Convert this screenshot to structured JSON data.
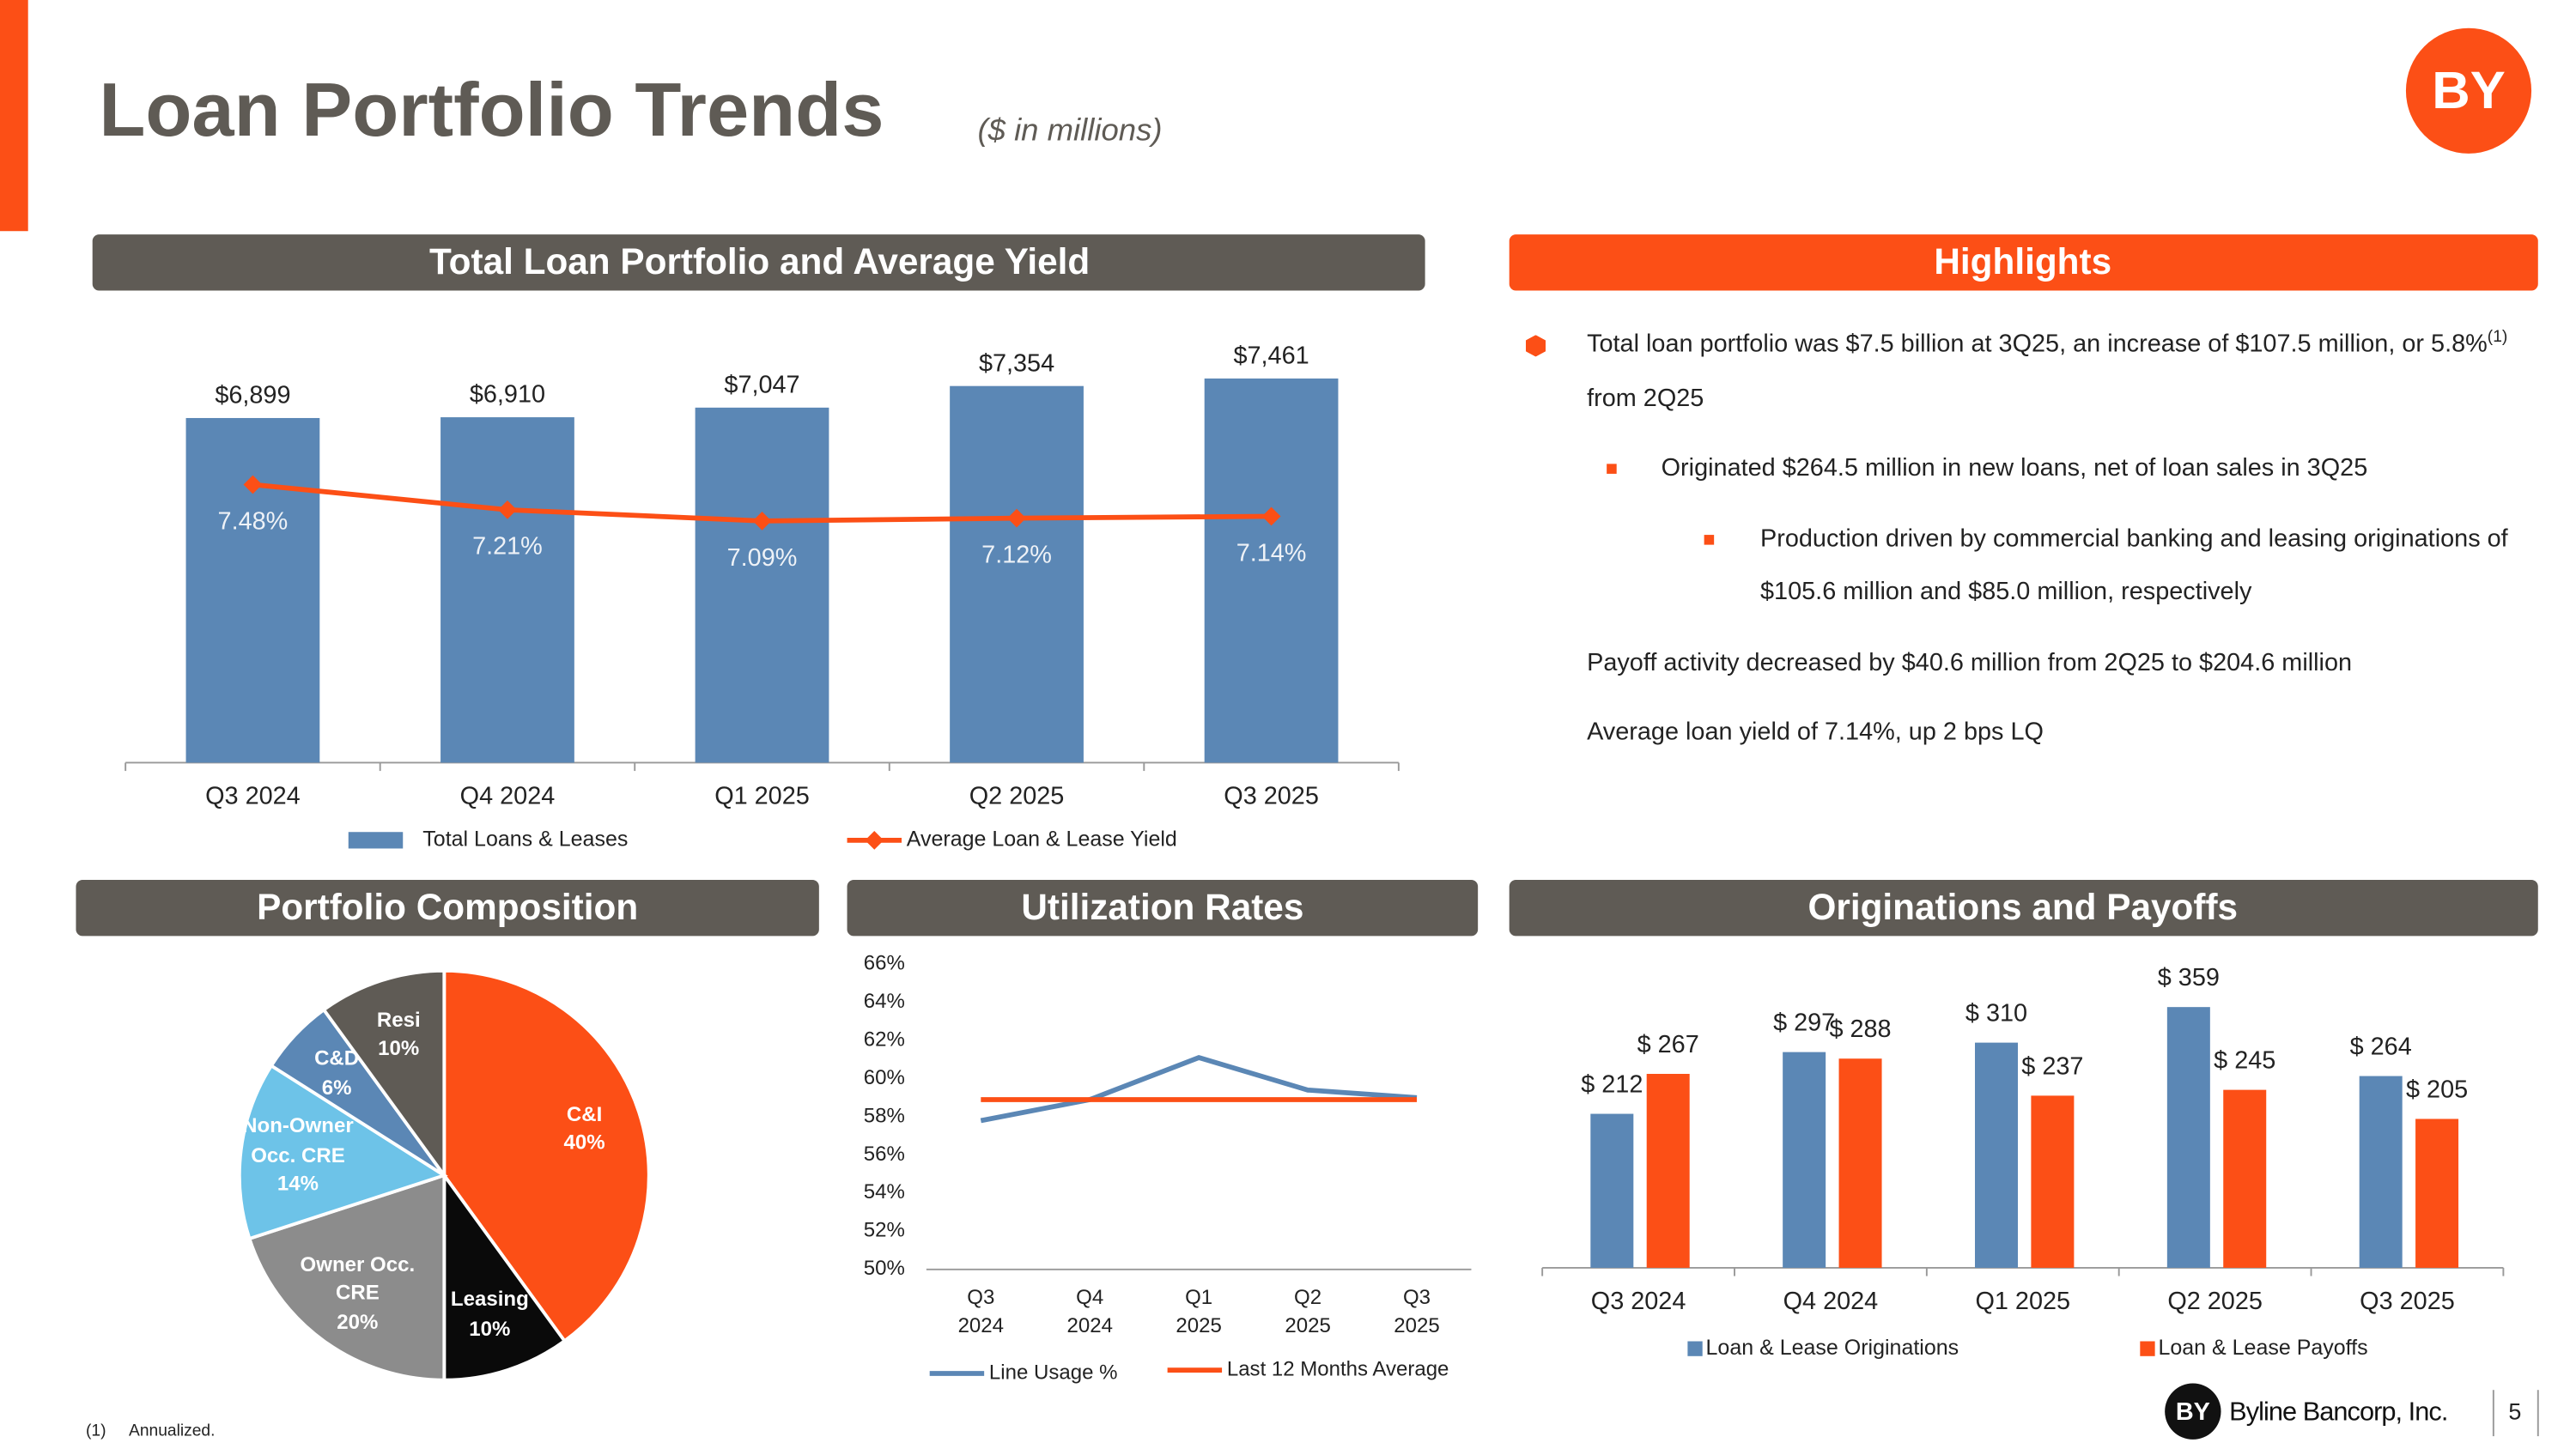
{
  "header": {
    "title": "Loan Portfolio Trends",
    "subtitle": "($ in millions)",
    "logo": "BY"
  },
  "highlights": {
    "title": "Highlights",
    "bullets": [
      {
        "text": "Total loan portfolio was $7.5 billion at 3Q25, an increase of $107.5 million, or 5.8%",
        "note": "(1)",
        "text_after": "from 2Q25",
        "bullets": [
          {
            "text": "Originated $264.5 million in new loans, net of loan sales in 3Q25",
            "bullets": [
              {
                "text": "Production driven by commercial banking and leasing originations of $105.6 million and $85.0 million, respectively"
              }
            ]
          }
        ]
      },
      {
        "text": "Payoff activity decreased by $40.6 million from 2Q25 to $204.6 million"
      },
      {
        "text": "Average loan yield of 7.14%, up 2 bps LQ"
      }
    ]
  },
  "chart_data": [
    {
      "type": "bar",
      "title": "Total Loan Portfolio and Average Yield",
      "categories": [
        "Q3 2024",
        "Q4 2024",
        "Q1 2025",
        "Q2 2025",
        "Q3 2025"
      ],
      "series": [
        {
          "name": "Total Loans & Leases",
          "color": "#5b87b5",
          "values": [
            6899,
            6910,
            7047,
            7354,
            7461
          ],
          "value_labels": [
            "$6,899",
            "$6,910",
            "$7,047",
            "$7,354",
            "$7,461"
          ]
        },
        {
          "name": "Average Loan & Lease Yield",
          "type": "line",
          "axis": "y2",
          "color": "#fc4f16",
          "values": [
            7.48,
            7.21,
            7.09,
            7.12,
            7.14
          ],
          "value_labels": [
            "7.48%",
            "7.21%",
            "7.09%",
            "7.12%",
            "7.14%"
          ]
        }
      ],
      "ylim": [
        2000,
        8500
      ],
      "y2lim": [
        4.5,
        9.4
      ],
      "legend": "bottom"
    },
    {
      "type": "pie",
      "title": "Portfolio Composition",
      "categories": [
        "C&I",
        "Leasing",
        "Owner Occ. CRE",
        "Non-Owner Occ. CRE",
        "C&D",
        "Resi"
      ],
      "values": [
        40,
        10,
        20,
        14,
        6,
        10
      ],
      "value_labels": [
        "40%",
        "10%",
        "20%",
        "14%",
        "6%",
        "10%"
      ],
      "colors": [
        "#fc4f16",
        "#0a0a0a",
        "#8c8c8c",
        "#6dc3e8",
        "#5b87b5",
        "#5f5b55"
      ]
    },
    {
      "type": "line",
      "title": "Utilization Rates",
      "categories": [
        "Q3 2024",
        "Q4 2024",
        "Q1 2025",
        "Q2 2025",
        "Q3 2025"
      ],
      "series": [
        {
          "name": "Line Usage %",
          "color": "#5b87b5",
          "values": [
            57.8,
            58.9,
            61.1,
            59.4,
            59.0
          ]
        },
        {
          "name": "Last 12 Months Average",
          "color": "#fc4f16",
          "values": [
            58.9,
            58.9,
            58.9,
            58.9,
            58.9
          ]
        }
      ],
      "ylim": [
        50,
        66
      ],
      "yticks": [
        {
          "value": 50,
          "label": "50%"
        },
        {
          "value": 52,
          "label": "52%"
        },
        {
          "value": 54,
          "label": "54%"
        },
        {
          "value": 56,
          "label": "56%"
        },
        {
          "value": 58,
          "label": "58%"
        },
        {
          "value": 60,
          "label": "60%"
        },
        {
          "value": 62,
          "label": "62%"
        },
        {
          "value": 64,
          "label": "64%"
        },
        {
          "value": 66,
          "label": "66%"
        }
      ],
      "legend": "bottom"
    },
    {
      "type": "bar",
      "title": "Originations and Payoffs",
      "categories": [
        "Q3 2024",
        "Q4 2024",
        "Q1 2025",
        "Q2 2025",
        "Q3 2025"
      ],
      "series": [
        {
          "name": "Loan & Lease Originations",
          "color": "#5b87b5",
          "values": [
            212,
            297,
            310,
            359,
            264
          ],
          "value_labels": [
            "$ 212",
            "$ 297",
            "$ 310",
            "$ 359",
            "$ 264"
          ]
        },
        {
          "name": "Loan & Lease Payoffs",
          "color": "#fc4f16",
          "values": [
            267,
            288,
            237,
            245,
            205
          ],
          "value_labels": [
            "$ 267",
            "$ 288",
            "$ 237",
            "$ 245",
            "$ 205"
          ]
        }
      ],
      "ylim": [
        0,
        400
      ],
      "legend": "bottom"
    }
  ],
  "footnote": {
    "marker": "(1)",
    "text": "Annualized."
  },
  "footer": {
    "company": "Byline Bancorp, Inc.",
    "page": 5
  }
}
